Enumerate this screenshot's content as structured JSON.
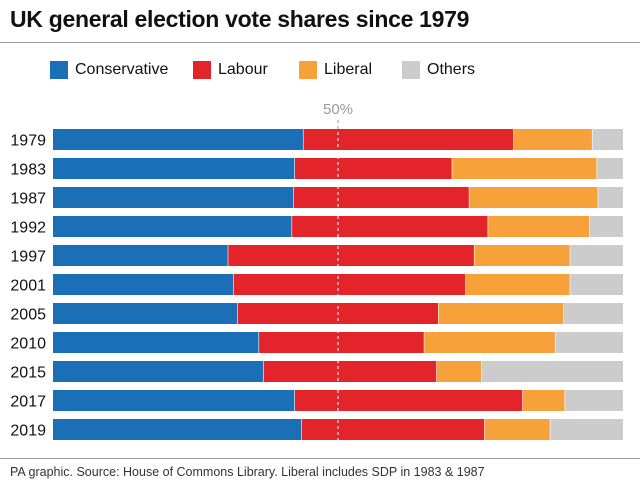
{
  "title": "UK general election vote shares since 1979",
  "footnote": "PA graphic. Source: House of Commons Library. Liberal includes SDP in 1983 & 1987",
  "colors": {
    "background": "#ffffff",
    "gridline": "#9a9a9a",
    "separator": "#ffffff"
  },
  "chart_data": {
    "type": "bar",
    "orientation": "horizontal",
    "stacked": true,
    "title": "UK general election vote shares since 1979",
    "xlim": [
      0,
      100
    ],
    "reference_line": {
      "value": 50,
      "label": "50%"
    },
    "legend_position": "top-left",
    "grid": false,
    "categories": [
      "1979",
      "1983",
      "1987",
      "1992",
      "1997",
      "2001",
      "2005",
      "2010",
      "2015",
      "2017",
      "2019"
    ],
    "series": [
      {
        "name": "Conservative",
        "color": "#1a6fb6",
        "values": [
          43.9,
          42.4,
          42.2,
          41.9,
          30.7,
          31.7,
          32.4,
          36.1,
          36.9,
          42.4,
          43.6
        ]
      },
      {
        "name": "Labour",
        "color": "#e3242b",
        "values": [
          36.9,
          27.6,
          30.8,
          34.4,
          43.2,
          40.7,
          35.2,
          29.0,
          30.4,
          40.0,
          32.1
        ]
      },
      {
        "name": "Liberal",
        "color": "#f7a13a",
        "values": [
          13.8,
          25.4,
          22.6,
          17.8,
          16.8,
          18.3,
          22.0,
          23.0,
          7.9,
          7.4,
          11.5
        ]
      },
      {
        "name": "Others",
        "color": "#cccccc",
        "values": [
          5.4,
          4.6,
          4.4,
          5.9,
          9.3,
          9.3,
          10.4,
          11.9,
          24.8,
          10.2,
          12.8
        ]
      }
    ]
  }
}
